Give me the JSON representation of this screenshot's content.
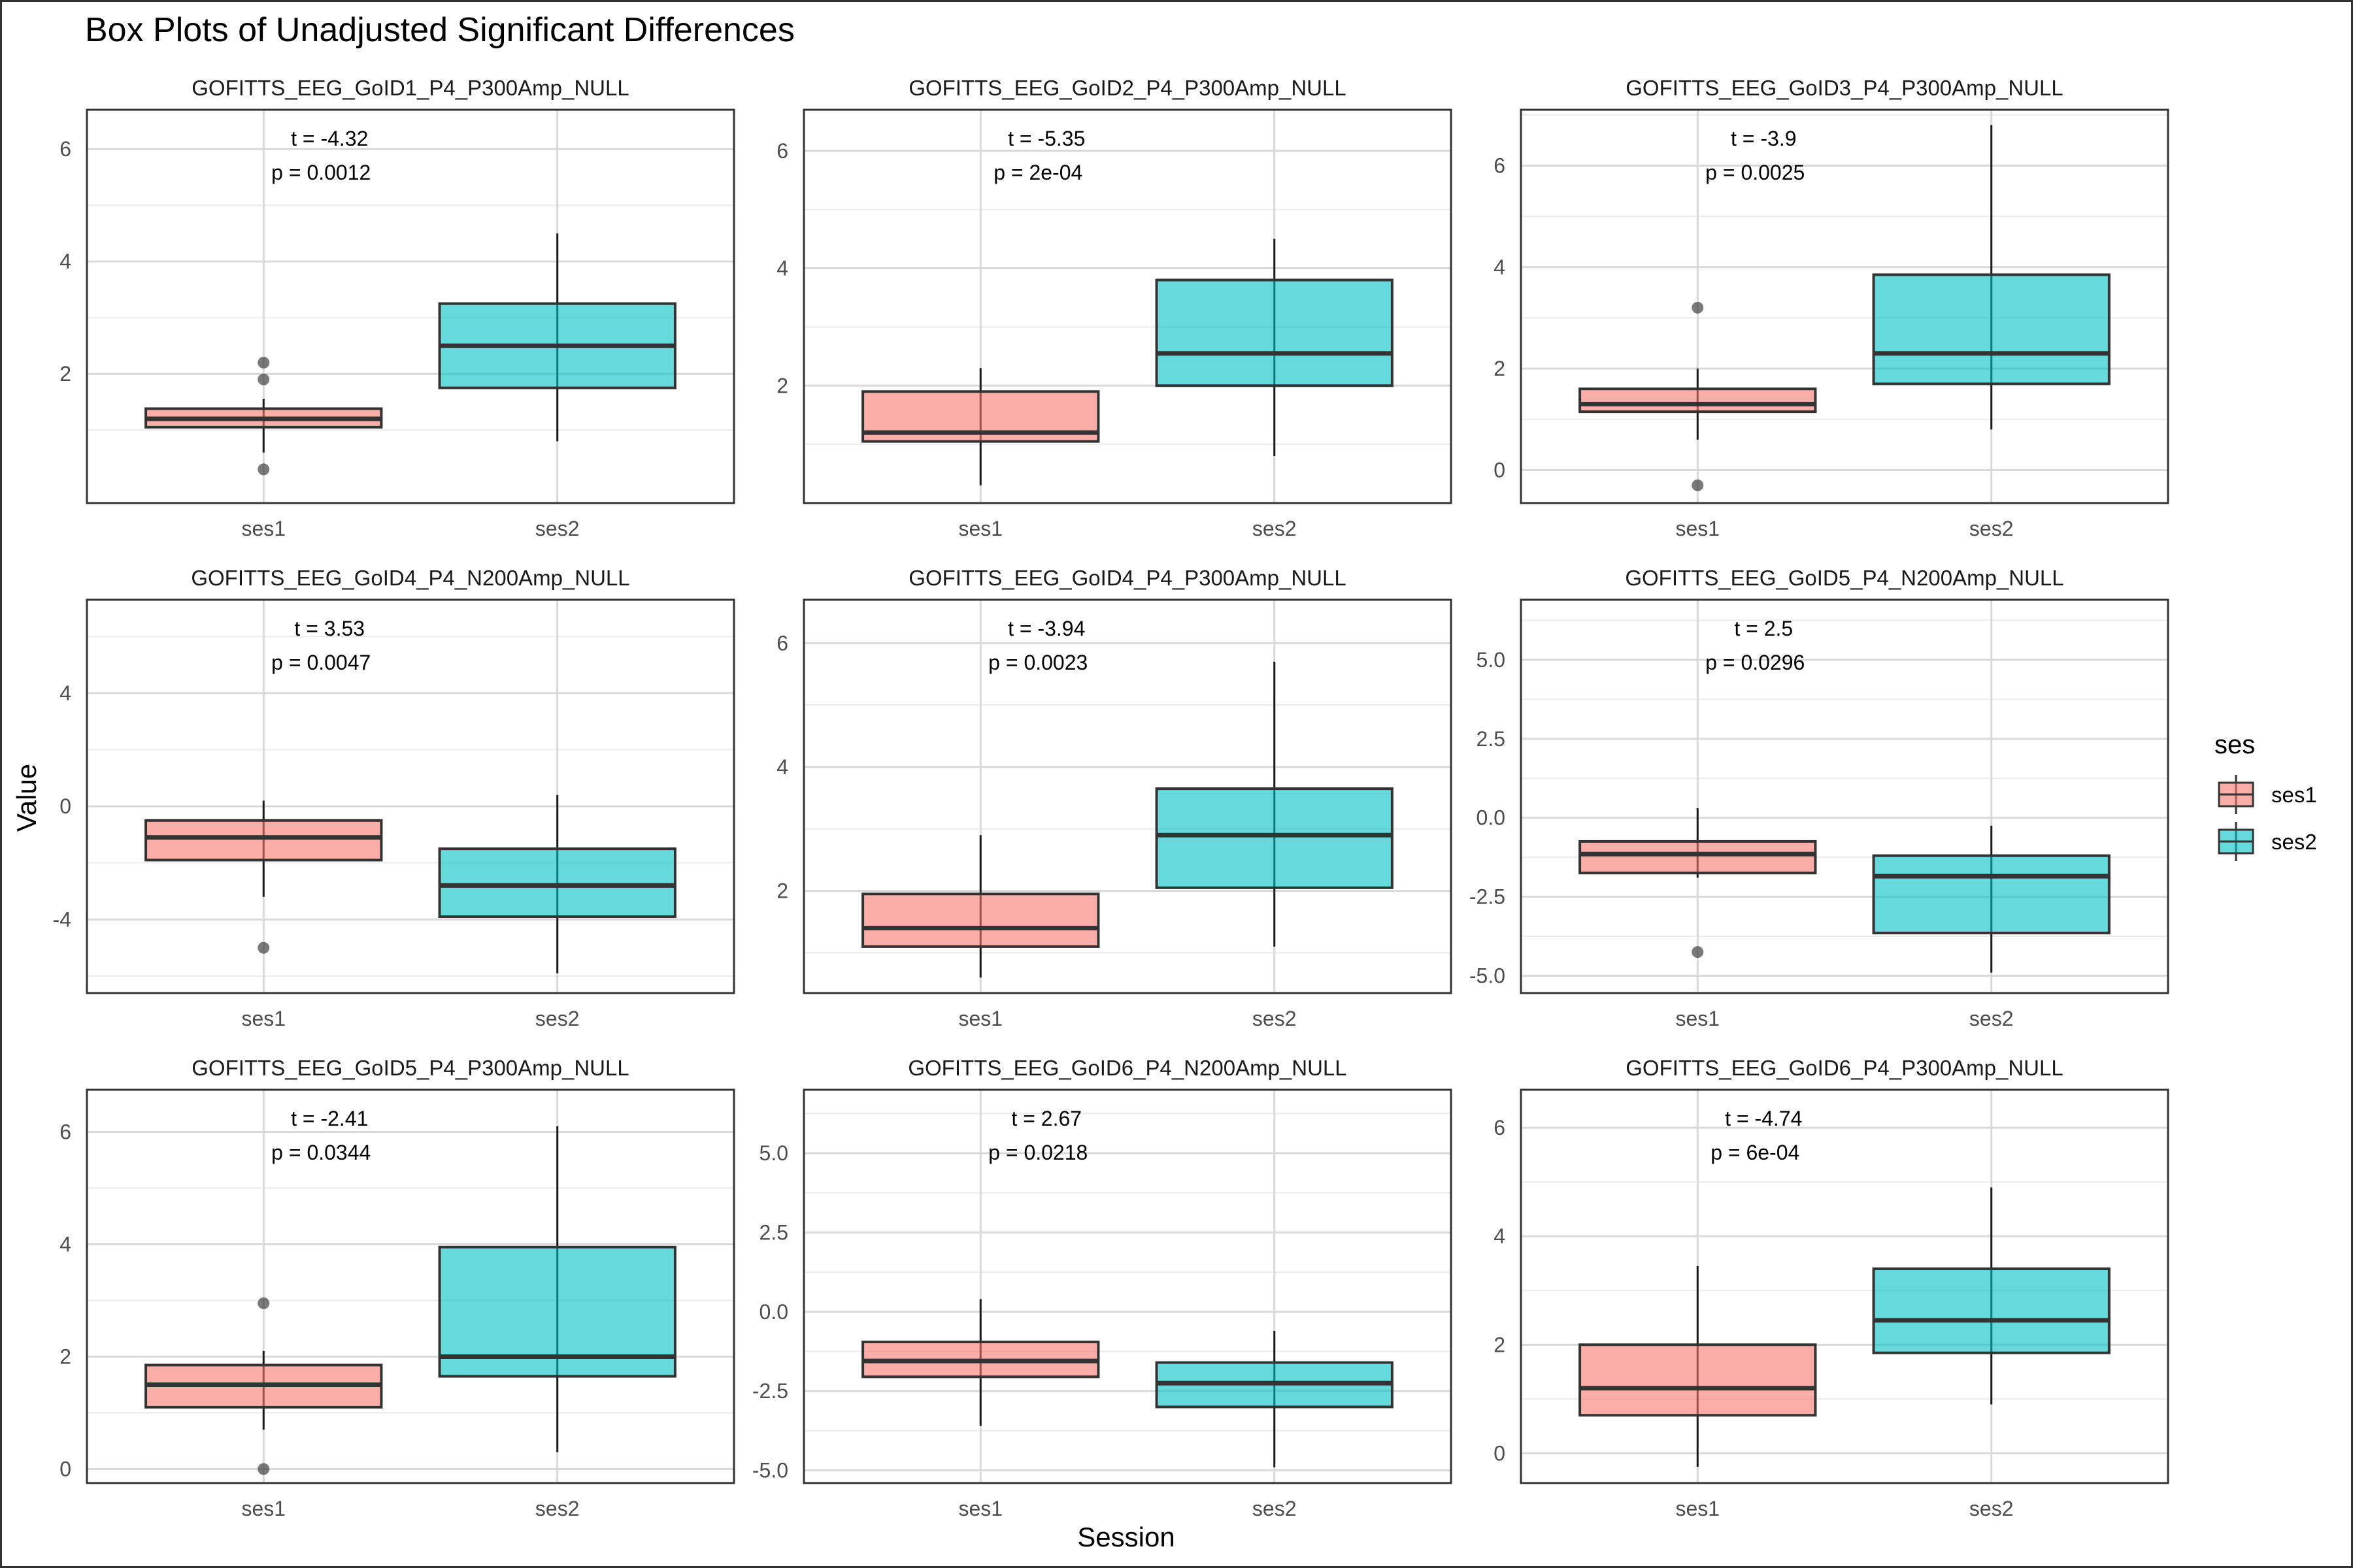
{
  "title": "Box Plots of Unadjusted Significant Differences",
  "xlabel": "Session",
  "ylabel": "Value",
  "legend": {
    "title": "ses",
    "position": "right",
    "items": [
      {
        "label": "ses1",
        "color": "#F8766D"
      },
      {
        "label": "ses2",
        "color": "#00BFC4"
      }
    ]
  },
  "colors": {
    "ses1": "#F8766D",
    "ses2": "#00BFC4",
    "panel_border": "#333333",
    "grid_major": "#d9d9d9",
    "grid_minor": "#ebebeb"
  },
  "chart_data": [
    {
      "type": "box",
      "title": "GOFITTS_EEG_GoID1_P4_P300Amp_NULL",
      "categories": [
        "ses1",
        "ses2"
      ],
      "ylim": [
        -0.3,
        6.7
      ],
      "yticks": [
        "2",
        "4",
        "6"
      ],
      "ytick_values": [
        2,
        4,
        6
      ],
      "grid": true,
      "annotation": {
        "t": "t = -4.32",
        "p": "p = 0.0012"
      },
      "boxes": [
        {
          "name": "ses1",
          "whisker_low": 0.6,
          "q1": 1.05,
          "median": 1.2,
          "q3": 1.38,
          "whisker_high": 1.55,
          "outliers": [
            0.3,
            1.9,
            2.2
          ]
        },
        {
          "name": "ses2",
          "whisker_low": 0.8,
          "q1": 1.75,
          "median": 2.5,
          "q3": 3.25,
          "whisker_high": 4.5,
          "outliers": []
        }
      ]
    },
    {
      "type": "box",
      "title": "GOFITTS_EEG_GoID2_P4_P300Amp_NULL",
      "categories": [
        "ses1",
        "ses2"
      ],
      "ylim": [
        0.0,
        6.7
      ],
      "yticks": [
        "2",
        "4",
        "6"
      ],
      "ytick_values": [
        2,
        4,
        6
      ],
      "grid": true,
      "annotation": {
        "t": "t = -5.35",
        "p": "p = 2e-04"
      },
      "boxes": [
        {
          "name": "ses1",
          "whisker_low": 0.3,
          "q1": 1.05,
          "median": 1.2,
          "q3": 1.9,
          "whisker_high": 2.3,
          "outliers": []
        },
        {
          "name": "ses2",
          "whisker_low": 0.8,
          "q1": 2.0,
          "median": 2.55,
          "q3": 3.8,
          "whisker_high": 4.5,
          "outliers": []
        }
      ]
    },
    {
      "type": "box",
      "title": "GOFITTS_EEG_GoID3_P4_P300Amp_NULL",
      "categories": [
        "ses1",
        "ses2"
      ],
      "ylim": [
        -0.65,
        7.1
      ],
      "yticks": [
        "0",
        "2",
        "4",
        "6"
      ],
      "ytick_values": [
        0,
        2,
        4,
        6
      ],
      "grid": true,
      "annotation": {
        "t": "t = -3.9",
        "p": "p = 0.0025"
      },
      "boxes": [
        {
          "name": "ses1",
          "whisker_low": 0.6,
          "q1": 1.15,
          "median": 1.3,
          "q3": 1.6,
          "whisker_high": 2.0,
          "outliers": [
            -0.3,
            3.2
          ]
        },
        {
          "name": "ses2",
          "whisker_low": 0.8,
          "q1": 1.7,
          "median": 2.3,
          "q3": 3.85,
          "whisker_high": 6.8,
          "outliers": []
        }
      ]
    },
    {
      "type": "box",
      "title": "GOFITTS_EEG_GoID4_P4_N200Amp_NULL",
      "categories": [
        "ses1",
        "ses2"
      ],
      "ylim": [
        -6.6,
        7.3
      ],
      "yticks": [
        "-4",
        "0",
        "4"
      ],
      "ytick_values": [
        -4,
        0,
        4
      ],
      "grid": true,
      "annotation": {
        "t": "t = 3.53",
        "p": "p = 0.0047"
      },
      "boxes": [
        {
          "name": "ses1",
          "whisker_low": -3.2,
          "q1": -1.9,
          "median": -1.1,
          "q3": -0.5,
          "whisker_high": 0.2,
          "outliers": [
            -5.0
          ]
        },
        {
          "name": "ses2",
          "whisker_low": -5.9,
          "q1": -3.9,
          "median": -2.8,
          "q3": -1.5,
          "whisker_high": 0.4,
          "outliers": []
        }
      ]
    },
    {
      "type": "box",
      "title": "GOFITTS_EEG_GoID4_P4_P300Amp_NULL",
      "categories": [
        "ses1",
        "ses2"
      ],
      "ylim": [
        0.35,
        6.7
      ],
      "yticks": [
        "2",
        "4",
        "6"
      ],
      "ytick_values": [
        2,
        4,
        6
      ],
      "grid": true,
      "annotation": {
        "t": "t = -3.94",
        "p": "p = 0.0023"
      },
      "boxes": [
        {
          "name": "ses1",
          "whisker_low": 0.6,
          "q1": 1.1,
          "median": 1.4,
          "q3": 1.95,
          "whisker_high": 2.9,
          "outliers": []
        },
        {
          "name": "ses2",
          "whisker_low": 1.1,
          "q1": 2.05,
          "median": 2.9,
          "q3": 3.65,
          "whisker_high": 5.7,
          "outliers": []
        }
      ]
    },
    {
      "type": "box",
      "title": "GOFITTS_EEG_GoID5_P4_N200Amp_NULL",
      "categories": [
        "ses1",
        "ses2"
      ],
      "ylim": [
        -5.55,
        6.9
      ],
      "yticks": [
        "-5.0",
        "-2.5",
        "0.0",
        "2.5",
        "5.0"
      ],
      "ytick_values": [
        -5,
        -2.5,
        0,
        2.5,
        5
      ],
      "grid": true,
      "annotation": {
        "t": "t = 2.5",
        "p": "p = 0.0296"
      },
      "boxes": [
        {
          "name": "ses1",
          "whisker_low": -1.9,
          "q1": -1.75,
          "median": -1.15,
          "q3": -0.75,
          "whisker_high": 0.3,
          "outliers": [
            -4.25
          ]
        },
        {
          "name": "ses2",
          "whisker_low": -4.9,
          "q1": -3.65,
          "median": -1.85,
          "q3": -1.2,
          "whisker_high": -0.25,
          "outliers": []
        }
      ]
    },
    {
      "type": "box",
      "title": "GOFITTS_EEG_GoID5_P4_P300Amp_NULL",
      "categories": [
        "ses1",
        "ses2"
      ],
      "ylim": [
        -0.25,
        6.75
      ],
      "yticks": [
        "0",
        "2",
        "4",
        "6"
      ],
      "ytick_values": [
        0,
        2,
        4,
        6
      ],
      "grid": true,
      "annotation": {
        "t": "t = -2.41",
        "p": "p = 0.0344"
      },
      "boxes": [
        {
          "name": "ses1",
          "whisker_low": 0.7,
          "q1": 1.1,
          "median": 1.5,
          "q3": 1.85,
          "whisker_high": 2.1,
          "outliers": [
            0.0,
            2.95
          ]
        },
        {
          "name": "ses2",
          "whisker_low": 0.3,
          "q1": 1.65,
          "median": 2.0,
          "q3": 3.95,
          "whisker_high": 6.1,
          "outliers": []
        }
      ]
    },
    {
      "type": "box",
      "title": "GOFITTS_EEG_GoID6_P4_N200Amp_NULL",
      "categories": [
        "ses1",
        "ses2"
      ],
      "ylim": [
        -5.4,
        7.0
      ],
      "yticks": [
        "-5.0",
        "-2.5",
        "0.0",
        "2.5",
        "5.0"
      ],
      "ytick_values": [
        -5,
        -2.5,
        0,
        2.5,
        5
      ],
      "grid": true,
      "annotation": {
        "t": "t = 2.67",
        "p": "p = 0.0218"
      },
      "boxes": [
        {
          "name": "ses1",
          "whisker_low": -3.6,
          "q1": -2.05,
          "median": -1.55,
          "q3": -0.95,
          "whisker_high": 0.4,
          "outliers": []
        },
        {
          "name": "ses2",
          "whisker_low": -4.9,
          "q1": -3.0,
          "median": -2.25,
          "q3": -1.6,
          "whisker_high": -0.6,
          "outliers": []
        }
      ]
    },
    {
      "type": "box",
      "title": "GOFITTS_EEG_GoID6_P4_P300Amp_NULL",
      "categories": [
        "ses1",
        "ses2"
      ],
      "ylim": [
        -0.55,
        6.7
      ],
      "yticks": [
        "0",
        "2",
        "4",
        "6"
      ],
      "ytick_values": [
        0,
        2,
        4,
        6
      ],
      "grid": true,
      "annotation": {
        "t": "t = -4.74",
        "p": "p = 6e-04"
      },
      "boxes": [
        {
          "name": "ses1",
          "whisker_low": -0.25,
          "q1": 0.7,
          "median": 1.2,
          "q3": 2.0,
          "whisker_high": 3.45,
          "outliers": []
        },
        {
          "name": "ses2",
          "whisker_low": 0.9,
          "q1": 1.85,
          "median": 2.45,
          "q3": 3.4,
          "whisker_high": 4.9,
          "outliers": []
        }
      ]
    }
  ]
}
